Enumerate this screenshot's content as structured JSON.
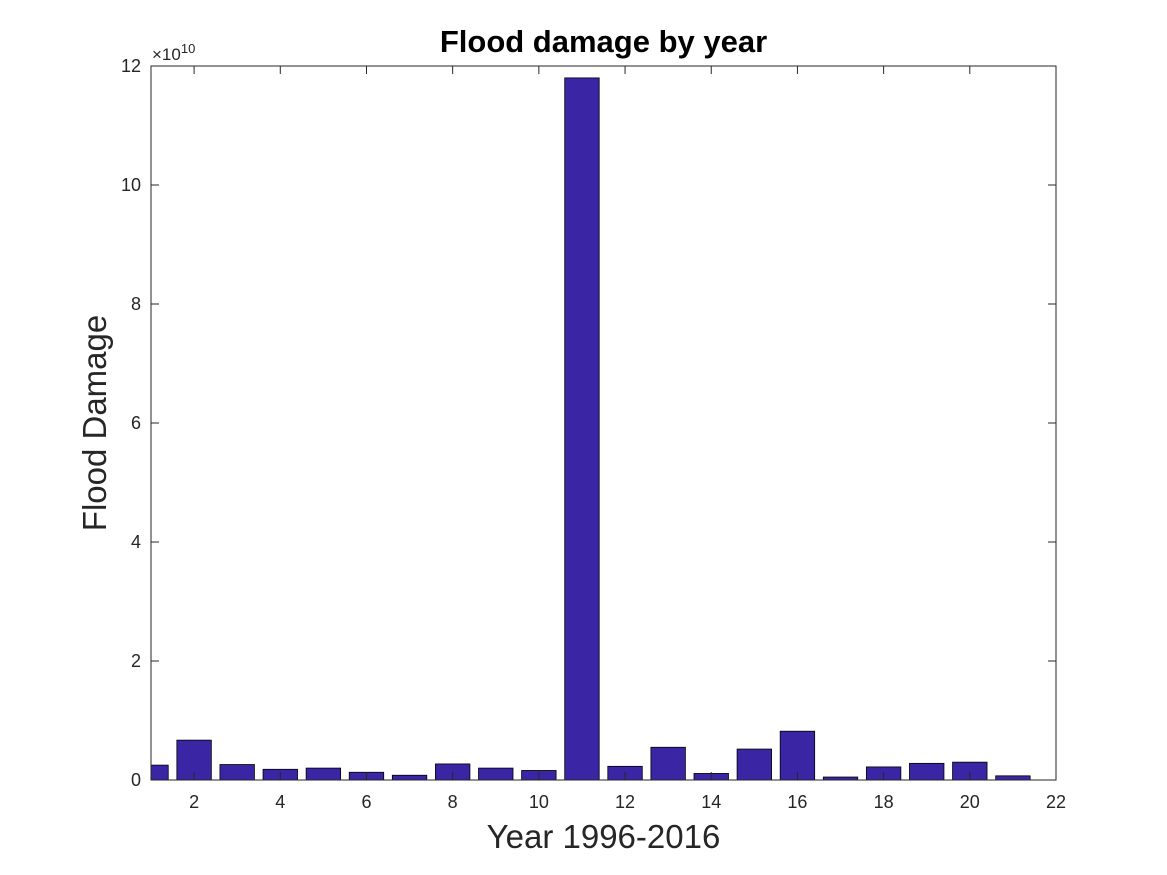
{
  "chart_data": {
    "type": "bar",
    "title": "Flood damage by year",
    "xlabel": "Year 1996-2016",
    "ylabel": "Flood Damage",
    "y_exponent_base": "×10",
    "y_exponent_power": "10",
    "x": [
      1,
      2,
      3,
      4,
      5,
      6,
      7,
      8,
      9,
      10,
      11,
      12,
      13,
      14,
      15,
      16,
      17,
      18,
      19,
      20,
      21
    ],
    "values": [
      0.25,
      0.67,
      0.26,
      0.18,
      0.2,
      0.13,
      0.08,
      0.27,
      0.2,
      0.16,
      11.8,
      0.23,
      0.55,
      0.11,
      0.52,
      0.82,
      0.05,
      0.22,
      0.28,
      0.3,
      0.07
    ],
    "xlim": [
      1,
      22
    ],
    "ylim": [
      0,
      12
    ],
    "xticks": [
      2,
      4,
      6,
      8,
      10,
      12,
      14,
      16,
      18,
      20,
      22
    ],
    "yticks": [
      0,
      2,
      4,
      6,
      8,
      10,
      12
    ],
    "grid": false,
    "bar_color": "#3a25a5",
    "bar_edge_color": "#000000"
  }
}
